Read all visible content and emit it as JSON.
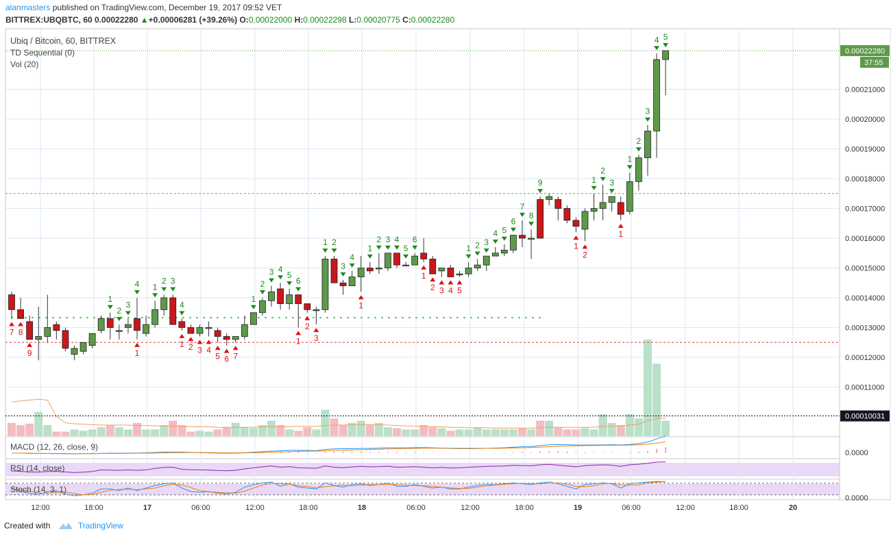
{
  "header": {
    "author": "alanmasters",
    "published": "published on TradingView.com, December 19, 2017 09:52 VET",
    "symbol": "BITTREX:UBQBTC, 60",
    "last": "0.00022280",
    "change_arrow": "▲",
    "change": "+0.00006281 (+39.26%)",
    "o_label": "O:",
    "o": "0.00022000",
    "h_label": "H:",
    "h": "0.00022298",
    "l_label": "L:",
    "l": "0.00020775",
    "c_label": "C:",
    "c": "0.00022280"
  },
  "legends": {
    "title": "Ubiq / Bitcoin, 60, BITTREX",
    "td": "TD Sequential (0)",
    "vol": "Vol (20)",
    "macd": "MACD (12, 26, close, 9)",
    "rsi": "RSI (14, close)",
    "stoch": "Stoch (14, 3, 1)"
  },
  "price_axis": {
    "ticks": [
      "0.00021000",
      "0.00020000",
      "0.00019000",
      "0.00018000",
      "0.00017000",
      "0.00016000",
      "0.00015000",
      "0.00014000",
      "0.00013000",
      "0.00012000",
      "0.00011000"
    ],
    "last_label": "0.00022280",
    "countdown": "37:55",
    "hline_label": "0.00010031",
    "macd_tick": "0.0000",
    "stoch_tick": "0.0000"
  },
  "time_axis": [
    "12:00",
    "18:00",
    "17",
    "06:00",
    "12:00",
    "18:00",
    "18",
    "06:00",
    "12:00",
    "18:00",
    "19",
    "06:00",
    "12:00",
    "18:00",
    "20"
  ],
  "footer": {
    "created": "Created with",
    "brand": "TradingView"
  },
  "colors": {
    "up": "#5d9a48",
    "down": "#c8171d",
    "grid": "#dbe7f3",
    "label_bg": "#131722"
  },
  "chart_data": {
    "type": "candlestick",
    "title": "Ubiq / Bitcoin, 60, BITTREX",
    "ylim": [
      0.0001,
      0.000228
    ],
    "candles": [
      {
        "o": 0.000141,
        "h": 0.000142,
        "l": 0.000133,
        "c": 0.000136
      },
      {
        "o": 0.000136,
        "h": 0.00014,
        "l": 0.000133,
        "c": 0.000133
      },
      {
        "o": 0.000132,
        "h": 0.000134,
        "l": 0.000126,
        "c": 0.000126
      },
      {
        "o": 0.000126,
        "h": 0.000137,
        "l": 0.000119,
        "c": 0.000127
      },
      {
        "o": 0.000127,
        "h": 0.000141,
        "l": 0.000125,
        "c": 0.00013
      },
      {
        "o": 0.000131,
        "h": 0.000132,
        "l": 0.000126,
        "c": 0.000129
      },
      {
        "o": 0.000129,
        "h": 0.00013,
        "l": 0.000122,
        "c": 0.000123
      },
      {
        "o": 0.000121,
        "h": 0.000124,
        "l": 0.000119,
        "c": 0.000123
      },
      {
        "o": 0.000122,
        "h": 0.000125,
        "l": 0.000121,
        "c": 0.000125
      },
      {
        "o": 0.000124,
        "h": 0.000128,
        "l": 0.000123,
        "c": 0.000128
      },
      {
        "o": 0.000129,
        "h": 0.000134,
        "l": 0.000128,
        "c": 0.000133
      },
      {
        "o": 0.000133,
        "h": 0.000135,
        "l": 0.000126,
        "c": 0.00013
      },
      {
        "o": 0.000129,
        "h": 0.000131,
        "l": 0.000126,
        "c": 0.000129
      },
      {
        "o": 0.00013,
        "h": 0.000133,
        "l": 0.000128,
        "c": 0.000131
      },
      {
        "o": 0.000133,
        "h": 0.00014,
        "l": 0.000126,
        "c": 0.000129
      },
      {
        "o": 0.000128,
        "h": 0.000134,
        "l": 0.000127,
        "c": 0.000131
      },
      {
        "o": 0.000131,
        "h": 0.000139,
        "l": 0.00013,
        "c": 0.000136
      },
      {
        "o": 0.000136,
        "h": 0.000141,
        "l": 0.000134,
        "c": 0.00014
      },
      {
        "o": 0.00014,
        "h": 0.000141,
        "l": 0.000131,
        "c": 0.000131
      },
      {
        "o": 0.000132,
        "h": 0.000133,
        "l": 0.000129,
        "c": 0.00013
      },
      {
        "o": 0.00013,
        "h": 0.000131,
        "l": 0.000128,
        "c": 0.000128
      },
      {
        "o": 0.000128,
        "h": 0.000131,
        "l": 0.000127,
        "c": 0.00013
      },
      {
        "o": 0.00013,
        "h": 0.000132,
        "l": 0.000127,
        "c": 0.00013
      },
      {
        "o": 0.000129,
        "h": 0.00013,
        "l": 0.000125,
        "c": 0.000127
      },
      {
        "o": 0.000127,
        "h": 0.000128,
        "l": 0.000124,
        "c": 0.000126
      },
      {
        "o": 0.000126,
        "h": 0.000127,
        "l": 0.000125,
        "c": 0.000127
      },
      {
        "o": 0.000127,
        "h": 0.000134,
        "l": 0.000126,
        "c": 0.000131
      },
      {
        "o": 0.000131,
        "h": 0.000135,
        "l": 0.000131,
        "c": 0.000135
      },
      {
        "o": 0.000135,
        "h": 0.00014,
        "l": 0.000134,
        "c": 0.000139
      },
      {
        "o": 0.000139,
        "h": 0.000144,
        "l": 0.000137,
        "c": 0.000142
      },
      {
        "o": 0.000143,
        "h": 0.000145,
        "l": 0.000136,
        "c": 0.000138
      },
      {
        "o": 0.000138,
        "h": 0.000143,
        "l": 0.000136,
        "c": 0.000141
      },
      {
        "o": 0.000141,
        "h": 0.000141,
        "l": 0.00013,
        "c": 0.000138
      },
      {
        "o": 0.000138,
        "h": 0.000138,
        "l": 0.000135,
        "c": 0.000136
      },
      {
        "o": 0.000136,
        "h": 0.000137,
        "l": 0.000131,
        "c": 0.000136
      },
      {
        "o": 0.000136,
        "h": 0.000154,
        "l": 0.000135,
        "c": 0.000153
      },
      {
        "o": 0.000153,
        "h": 0.000154,
        "l": 0.000145,
        "c": 0.000145
      },
      {
        "o": 0.000145,
        "h": 0.000146,
        "l": 0.000141,
        "c": 0.000144
      },
      {
        "o": 0.000144,
        "h": 0.000149,
        "l": 0.000144,
        "c": 0.000147
      },
      {
        "o": 0.000147,
        "h": 0.000154,
        "l": 0.000142,
        "c": 0.00015
      },
      {
        "o": 0.00015,
        "h": 0.000152,
        "l": 0.000148,
        "c": 0.000149
      },
      {
        "o": 0.00015,
        "h": 0.000155,
        "l": 0.000148,
        "c": 0.00015
      },
      {
        "o": 0.00015,
        "h": 0.000155,
        "l": 0.000149,
        "c": 0.000155
      },
      {
        "o": 0.000155,
        "h": 0.000155,
        "l": 0.00015,
        "c": 0.000151
      },
      {
        "o": 0.000151,
        "h": 0.000152,
        "l": 0.000151,
        "c": 0.000151
      },
      {
        "o": 0.000151,
        "h": 0.000155,
        "l": 0.000151,
        "c": 0.000154
      },
      {
        "o": 0.000155,
        "h": 0.00016,
        "l": 0.000152,
        "c": 0.000153
      },
      {
        "o": 0.000153,
        "h": 0.000154,
        "l": 0.000148,
        "c": 0.000148
      },
      {
        "o": 0.000149,
        "h": 0.00015,
        "l": 0.000147,
        "c": 0.00015
      },
      {
        "o": 0.00015,
        "h": 0.000151,
        "l": 0.000147,
        "c": 0.000147
      },
      {
        "o": 0.000148,
        "h": 0.000149,
        "l": 0.000147,
        "c": 0.000148
      },
      {
        "o": 0.000148,
        "h": 0.000152,
        "l": 0.000147,
        "c": 0.00015
      },
      {
        "o": 0.00015,
        "h": 0.000153,
        "l": 0.000149,
        "c": 0.000151
      },
      {
        "o": 0.000151,
        "h": 0.000154,
        "l": 0.000149,
        "c": 0.000154
      },
      {
        "o": 0.000154,
        "h": 0.000157,
        "l": 0.000154,
        "c": 0.000155
      },
      {
        "o": 0.000155,
        "h": 0.000158,
        "l": 0.000154,
        "c": 0.000156
      },
      {
        "o": 0.000156,
        "h": 0.000161,
        "l": 0.000155,
        "c": 0.000161
      },
      {
        "o": 0.000161,
        "h": 0.000166,
        "l": 0.000157,
        "c": 0.00016
      },
      {
        "o": 0.00016,
        "h": 0.000163,
        "l": 0.000153,
        "c": 0.00016
      },
      {
        "o": 0.000173,
        "h": 0.000174,
        "l": 0.00016,
        "c": 0.00016
      },
      {
        "o": 0.000173,
        "h": 0.000175,
        "l": 0.000171,
        "c": 0.000174
      },
      {
        "o": 0.000173,
        "h": 0.000174,
        "l": 0.000166,
        "c": 0.00017
      },
      {
        "o": 0.00017,
        "h": 0.000171,
        "l": 0.000165,
        "c": 0.000166
      },
      {
        "o": 0.000166,
        "h": 0.000167,
        "l": 0.000162,
        "c": 0.000164
      },
      {
        "o": 0.000163,
        "h": 0.00017,
        "l": 0.000159,
        "c": 0.000169
      },
      {
        "o": 0.000169,
        "h": 0.000175,
        "l": 0.000166,
        "c": 0.00017
      },
      {
        "o": 0.00017,
        "h": 0.000178,
        "l": 0.000166,
        "c": 0.000172
      },
      {
        "o": 0.000172,
        "h": 0.000174,
        "l": 0.000169,
        "c": 0.000174
      },
      {
        "o": 0.000172,
        "h": 0.000174,
        "l": 0.000166,
        "c": 0.000168
      },
      {
        "o": 0.000169,
        "h": 0.000182,
        "l": 0.000168,
        "c": 0.000179
      },
      {
        "o": 0.000179,
        "h": 0.000188,
        "l": 0.000176,
        "c": 0.000187
      },
      {
        "o": 0.000187,
        "h": 0.000198,
        "l": 0.000181,
        "c": 0.000196
      },
      {
        "o": 0.000196,
        "h": 0.000222,
        "l": 0.000187,
        "c": 0.00022
      },
      {
        "o": 0.00022,
        "h": 0.000223,
        "l": 0.000208,
        "c": 0.000223
      }
    ],
    "levels": [
      {
        "name": "resistance",
        "price": 0.0001333,
        "color": "#2ecc40"
      },
      {
        "name": "support",
        "price": 0.000125,
        "color": "#e53935"
      },
      {
        "name": "upper",
        "price": 0.000175,
        "color": "#2ecc40"
      },
      {
        "name": "hline",
        "price": 0.00010031,
        "color": "#000000"
      }
    ],
    "td_sell": [
      {
        "i": 11,
        "n": "1"
      },
      {
        "i": 12,
        "n": "2"
      },
      {
        "i": 13,
        "n": "3"
      },
      {
        "i": 14,
        "n": "4"
      },
      {
        "i": 16,
        "n": "1"
      },
      {
        "i": 17,
        "n": "2"
      },
      {
        "i": 18,
        "n": "3"
      },
      {
        "i": 19,
        "n": "4"
      },
      {
        "i": 27,
        "n": "1"
      },
      {
        "i": 28,
        "n": "2"
      },
      {
        "i": 29,
        "n": "3"
      },
      {
        "i": 30,
        "n": "4"
      },
      {
        "i": 31,
        "n": "5"
      },
      {
        "i": 32,
        "n": "6"
      },
      {
        "i": 35,
        "n": "1"
      },
      {
        "i": 36,
        "n": "2"
      },
      {
        "i": 37,
        "n": "3"
      },
      {
        "i": 38,
        "n": "4"
      },
      {
        "i": 40,
        "n": "1"
      },
      {
        "i": 41,
        "n": "2"
      },
      {
        "i": 42,
        "n": "3"
      },
      {
        "i": 43,
        "n": "4"
      },
      {
        "i": 44,
        "n": "5"
      },
      {
        "i": 45,
        "n": "6"
      },
      {
        "i": 51,
        "n": "1"
      },
      {
        "i": 52,
        "n": "2"
      },
      {
        "i": 53,
        "n": "3"
      },
      {
        "i": 54,
        "n": "4"
      },
      {
        "i": 55,
        "n": "5"
      },
      {
        "i": 56,
        "n": "6"
      },
      {
        "i": 57,
        "n": "7"
      },
      {
        "i": 58,
        "n": "8"
      },
      {
        "i": 59,
        "n": "9"
      },
      {
        "i": 65,
        "n": "1"
      },
      {
        "i": 66,
        "n": "2"
      },
      {
        "i": 67,
        "n": "3"
      },
      {
        "i": 69,
        "n": "1"
      },
      {
        "i": 70,
        "n": "2"
      },
      {
        "i": 71,
        "n": "3"
      },
      {
        "i": 72,
        "n": "4"
      },
      {
        "i": 73,
        "n": "5"
      }
    ],
    "td_buy": [
      {
        "i": 0,
        "n": "7"
      },
      {
        "i": 1,
        "n": "8"
      },
      {
        "i": 2,
        "n": "9"
      },
      {
        "i": 14,
        "n": "1"
      },
      {
        "i": 19,
        "n": "1"
      },
      {
        "i": 20,
        "n": "2"
      },
      {
        "i": 21,
        "n": "3"
      },
      {
        "i": 22,
        "n": "4"
      },
      {
        "i": 23,
        "n": "5"
      },
      {
        "i": 24,
        "n": "6"
      },
      {
        "i": 25,
        "n": "7"
      },
      {
        "i": 32,
        "n": "1"
      },
      {
        "i": 33,
        "n": "2"
      },
      {
        "i": 34,
        "n": "3"
      },
      {
        "i": 39,
        "n": "1"
      },
      {
        "i": 46,
        "n": "1"
      },
      {
        "i": 47,
        "n": "2"
      },
      {
        "i": 48,
        "n": "3"
      },
      {
        "i": 49,
        "n": "4"
      },
      {
        "i": 50,
        "n": "5"
      },
      {
        "i": 63,
        "n": "1"
      },
      {
        "i": 64,
        "n": "2"
      },
      {
        "i": 68,
        "n": "1"
      }
    ],
    "volume": [
      0.3,
      0.25,
      0.28,
      0.55,
      0.25,
      0.1,
      0.1,
      0.15,
      0.12,
      0.15,
      0.2,
      0.25,
      0.2,
      0.15,
      0.3,
      0.15,
      0.15,
      0.25,
      0.35,
      0.25,
      0.1,
      0.12,
      0.1,
      0.15,
      0.2,
      0.3,
      0.2,
      0.18,
      0.25,
      0.35,
      0.25,
      0.15,
      0.12,
      0.2,
      0.15,
      0.6,
      0.4,
      0.25,
      0.3,
      0.35,
      0.25,
      0.3,
      0.2,
      0.18,
      0.15,
      0.15,
      0.25,
      0.2,
      0.18,
      0.12,
      0.15,
      0.15,
      0.2,
      0.15,
      0.15,
      0.15,
      0.15,
      0.18,
      0.15,
      0.35,
      0.35,
      0.2,
      0.15,
      0.15,
      0.18,
      0.15,
      0.5,
      0.3,
      0.25,
      0.5,
      0.4,
      2.2,
      1.65,
      0.35
    ],
    "volume_ma": [
      0.78,
      0.8,
      0.82,
      0.84,
      0.82,
      0.45,
      0.3,
      0.28,
      0.27,
      0.26,
      0.25,
      0.25,
      0.25,
      0.25,
      0.24,
      0.24,
      0.23,
      0.23,
      0.22,
      0.22,
      0.21,
      0.21,
      0.21,
      0.2,
      0.2,
      0.2,
      0.2,
      0.2,
      0.21,
      0.21,
      0.21,
      0.21,
      0.22,
      0.22,
      0.22,
      0.24,
      0.25,
      0.25,
      0.26,
      0.26,
      0.26,
      0.26,
      0.25,
      0.24,
      0.23,
      0.22,
      0.22,
      0.21,
      0.21,
      0.2,
      0.2,
      0.19,
      0.19,
      0.19,
      0.18,
      0.18,
      0.18,
      0.18,
      0.18,
      0.19,
      0.2,
      0.2,
      0.2,
      0.2,
      0.2,
      0.2,
      0.22,
      0.22,
      0.23,
      0.25,
      0.27,
      0.35,
      0.4,
      0.41
    ],
    "macd": [
      0,
      0,
      -0.02,
      -0.03,
      -0.03,
      -0.04,
      -0.05,
      -0.05,
      -0.04,
      -0.03,
      -0.02,
      -0.01,
      -0.01,
      0,
      0.01,
      0.03,
      0.05,
      0.08,
      0.09,
      0.08,
      0.06,
      0.04,
      0.02,
      0,
      -0.01,
      0,
      0.03,
      0.07,
      0.12,
      0.17,
      0.19,
      0.22,
      0.23,
      0.22,
      0.2,
      0.3,
      0.35,
      0.36,
      0.36,
      0.38,
      0.38,
      0.4,
      0.43,
      0.44,
      0.44,
      0.45,
      0.45,
      0.43,
      0.4,
      0.38,
      0.36,
      0.36,
      0.37,
      0.39,
      0.41,
      0.44,
      0.48,
      0.52,
      0.53,
      0.62,
      0.68,
      0.7,
      0.69,
      0.66,
      0.66,
      0.66,
      0.67,
      0.68,
      0.66,
      0.7,
      0.78,
      0.9,
      1.15,
      1.4
    ],
    "macd_signal": [
      0,
      0,
      -0.01,
      -0.02,
      -0.02,
      -0.03,
      -0.03,
      -0.04,
      -0.04,
      -0.04,
      -0.03,
      -0.03,
      -0.02,
      -0.02,
      -0.01,
      0,
      0.01,
      0.03,
      0.04,
      0.05,
      0.05,
      0.05,
      0.04,
      0.03,
      0.02,
      0.02,
      0.02,
      0.03,
      0.05,
      0.07,
      0.1,
      0.12,
      0.14,
      0.16,
      0.17,
      0.19,
      0.22,
      0.24,
      0.26,
      0.28,
      0.3,
      0.32,
      0.34,
      0.36,
      0.37,
      0.38,
      0.4,
      0.4,
      0.4,
      0.4,
      0.39,
      0.39,
      0.39,
      0.39,
      0.39,
      0.4,
      0.42,
      0.44,
      0.46,
      0.49,
      0.52,
      0.56,
      0.58,
      0.6,
      0.61,
      0.62,
      0.63,
      0.64,
      0.64,
      0.65,
      0.68,
      0.72,
      0.8,
      0.92
    ],
    "rsi": [
      40,
      38,
      35,
      34,
      37,
      38,
      35,
      32,
      34,
      37,
      45,
      44,
      43,
      45,
      43,
      45,
      52,
      57,
      58,
      48,
      46,
      45,
      44,
      42,
      41,
      43,
      50,
      55,
      60,
      64,
      58,
      61,
      55,
      54,
      53,
      64,
      58,
      56,
      59,
      62,
      60,
      61,
      63,
      58,
      59,
      61,
      58,
      55,
      57,
      54,
      55,
      58,
      60,
      62,
      63,
      64,
      67,
      66,
      65,
      70,
      72,
      68,
      64,
      60,
      66,
      68,
      70,
      68,
      62,
      70,
      73,
      77,
      83,
      84
    ],
    "stoch_k": [
      60,
      40,
      30,
      20,
      40,
      45,
      25,
      15,
      20,
      30,
      55,
      55,
      45,
      60,
      45,
      60,
      75,
      85,
      90,
      60,
      40,
      35,
      40,
      30,
      25,
      35,
      65,
      80,
      90,
      95,
      70,
      85,
      65,
      60,
      55,
      90,
      75,
      65,
      80,
      85,
      75,
      80,
      90,
      70,
      70,
      80,
      70,
      60,
      65,
      55,
      55,
      65,
      75,
      80,
      80,
      85,
      90,
      85,
      80,
      90,
      95,
      85,
      70,
      55,
      80,
      85,
      90,
      85,
      60,
      85,
      90,
      95,
      98,
      98
    ],
    "stoch_d": [
      55,
      50,
      43,
      30,
      30,
      35,
      37,
      28,
      20,
      22,
      35,
      47,
      52,
      53,
      50,
      55,
      60,
      73,
      83,
      78,
      63,
      45,
      38,
      35,
      32,
      30,
      42,
      60,
      78,
      88,
      85,
      83,
      73,
      70,
      60,
      68,
      73,
      77,
      73,
      77,
      80,
      80,
      82,
      80,
      77,
      73,
      73,
      70,
      65,
      60,
      58,
      58,
      65,
      73,
      78,
      82,
      85,
      87,
      85,
      85,
      88,
      90,
      83,
      70,
      68,
      73,
      85,
      87,
      78,
      77,
      78,
      90,
      94,
      97
    ]
  }
}
